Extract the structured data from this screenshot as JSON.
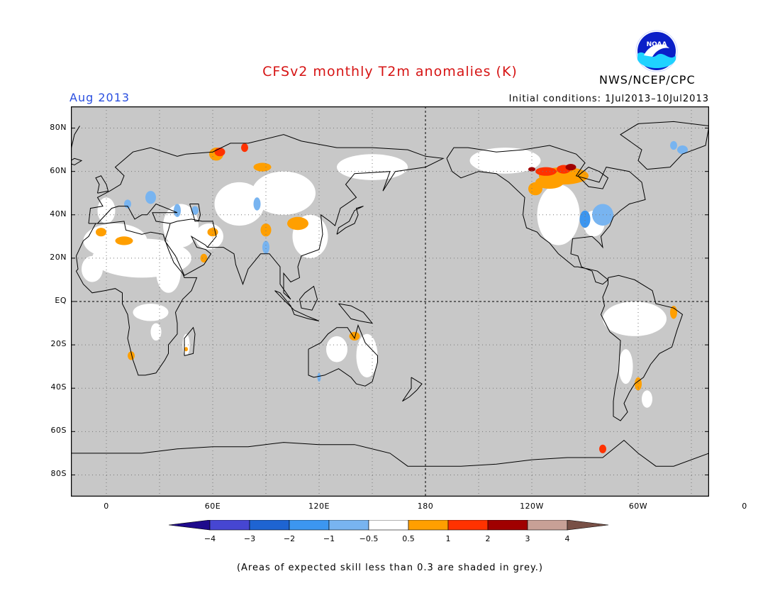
{
  "header": {
    "title": "CFSv2 monthly T2m anomalies (K)",
    "valid_month": "Aug 2013",
    "initial_conditions": "Initial conditions: 1Jul2013–10Jul2013",
    "agency": "NWS/NCEP/CPC",
    "logo_text": "NOAA",
    "logo_icon": "noaa-logo"
  },
  "map": {
    "lon_range": [
      -20,
      340
    ],
    "lat_range": [
      -90,
      90
    ],
    "ocean_color": "#c8c8c8",
    "land_outline_color": "#000000",
    "y_labels": [
      {
        "lat": 80,
        "label": "80N"
      },
      {
        "lat": 60,
        "label": "60N"
      },
      {
        "lat": 40,
        "label": "40N"
      },
      {
        "lat": 20,
        "label": "20N"
      },
      {
        "lat": 0,
        "label": "EQ"
      },
      {
        "lat": -20,
        "label": "20S"
      },
      {
        "lat": -40,
        "label": "40S"
      },
      {
        "lat": -60,
        "label": "60S"
      },
      {
        "lat": -80,
        "label": "80S"
      }
    ],
    "x_labels": [
      {
        "lon": 0,
        "label": "0"
      },
      {
        "lon": 60,
        "label": "60E"
      },
      {
        "lon": 120,
        "label": "120E"
      },
      {
        "lon": 180,
        "label": "180"
      },
      {
        "lon": 240,
        "label": "120W"
      },
      {
        "lon": 300,
        "label": "60W"
      },
      {
        "lon": 360,
        "label": "0"
      }
    ]
  },
  "colorbar": {
    "labels": [
      "−4",
      "−3",
      "−2",
      "−1",
      "−0.5",
      "0.5",
      "1",
      "2",
      "3",
      "4"
    ],
    "colors": [
      "#1e0a8c",
      "#4646d2",
      "#1e64d2",
      "#3c96f0",
      "#78b4f0",
      "#ffffff",
      "#ff9f00",
      "#ff3200",
      "#a00000",
      "#c8a096",
      "#785046"
    ]
  },
  "footnote": "(Areas of expected skill less than 0.3 are shaded in grey.)"
}
